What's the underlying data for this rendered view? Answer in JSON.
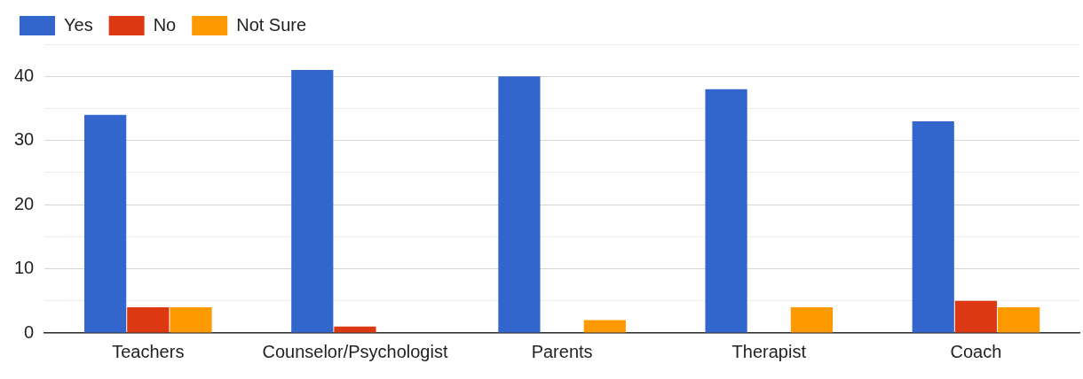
{
  "chart_data": {
    "type": "bar",
    "categories": [
      "Teachers",
      "Counselor/Psychologist",
      "Parents",
      "Therapist",
      "Coach"
    ],
    "series": [
      {
        "name": "Yes",
        "color": "#3366cc",
        "values": [
          34,
          41,
          40,
          38,
          33
        ]
      },
      {
        "name": "No",
        "color": "#dc3912",
        "values": [
          4,
          1,
          0,
          0,
          5
        ]
      },
      {
        "name": "Not Sure",
        "color": "#ff9900",
        "values": [
          4,
          0,
          2,
          4,
          4
        ]
      }
    ],
    "ylim": [
      0,
      45
    ],
    "yticks": [
      0,
      {
        "value": 5,
        "label": null
      },
      10,
      {
        "value": 15,
        "label": null
      },
      20,
      {
        "value": 25,
        "label": null
      },
      30,
      {
        "value": 35,
        "label": null
      },
      40,
      {
        "value": 45,
        "label": null
      }
    ],
    "grid": "y",
    "legend": "top left"
  }
}
